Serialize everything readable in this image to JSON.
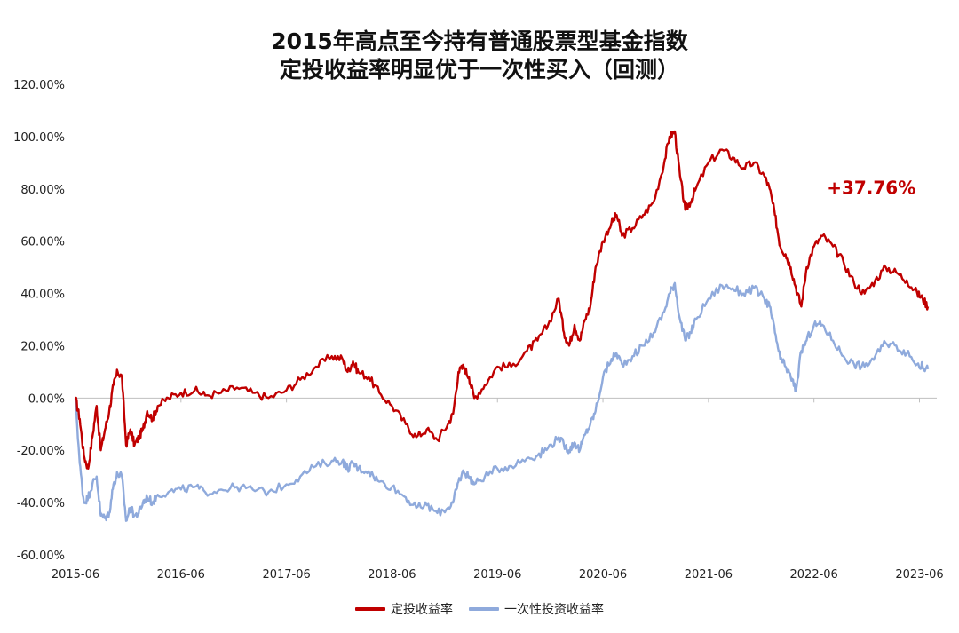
{
  "chart_data": {
    "type": "line",
    "title": "2015年高点至今持有普通股票型基金指数",
    "subtitle": "定投收益率明显优于一次性买入（回测）",
    "xlabel": "",
    "ylabel": "",
    "ylim": [
      -60,
      120
    ],
    "ytick_values": [
      -60,
      -40,
      -20,
      0,
      20,
      40,
      60,
      80,
      100,
      120
    ],
    "ytick_labels": [
      "-60.00%",
      "-40.00%",
      "-20.00%",
      "0.00%",
      "20.00%",
      "40.00%",
      "60.00%",
      "80.00%",
      "100.00%",
      "120.00%"
    ],
    "xrange": [
      2015.42,
      2023.5
    ],
    "xtick_values": [
      2015.42,
      2016.42,
      2017.42,
      2018.42,
      2019.42,
      2020.42,
      2021.42,
      2022.42,
      2023.42
    ],
    "xtick_labels": [
      "2015-06",
      "2016-06",
      "2017-06",
      "2018-06",
      "2019-06",
      "2020-06",
      "2021-06",
      "2022-06",
      "2023-06"
    ],
    "annotation": {
      "text": "+37.76%",
      "x": 2022.5,
      "y": 78,
      "color": "#c00000"
    },
    "series": [
      {
        "name": "定投收益率",
        "color": "#c00000",
        "x": [
          2015.42,
          2015.46,
          2015.5,
          2015.54,
          2015.58,
          2015.62,
          2015.66,
          2015.7,
          2015.74,
          2015.78,
          2015.82,
          2015.86,
          2015.9,
          2015.94,
          2015.98,
          2016.02,
          2016.06,
          2016.1,
          2016.15,
          2016.2,
          2016.3,
          2016.42,
          2016.55,
          2016.65,
          2016.8,
          2016.95,
          2017.1,
          2017.25,
          2017.42,
          2017.55,
          2017.7,
          2017.85,
          2017.95,
          2018.0,
          2018.05,
          2018.1,
          2018.2,
          2018.3,
          2018.42,
          2018.55,
          2018.65,
          2018.75,
          2018.85,
          2018.95,
          2019.0,
          2019.05,
          2019.1,
          2019.15,
          2019.2,
          2019.3,
          2019.42,
          2019.55,
          2019.7,
          2019.8,
          2019.9,
          2020.0,
          2020.05,
          2020.1,
          2020.15,
          2020.2,
          2020.25,
          2020.3,
          2020.35,
          2020.42,
          2020.5,
          2020.55,
          2020.6,
          2020.7,
          2020.8,
          2020.9,
          2021.0,
          2021.05,
          2021.1,
          2021.15,
          2021.2,
          2021.25,
          2021.3,
          2021.42,
          2021.55,
          2021.65,
          2021.75,
          2021.85,
          2021.95,
          2022.0,
          2022.05,
          2022.1,
          2022.15,
          2022.2,
          2022.25,
          2022.3,
          2022.35,
          2022.42,
          2022.5,
          2022.6,
          2022.7,
          2022.8,
          2022.9,
          2023.0,
          2023.1,
          2023.2,
          2023.3,
          2023.4,
          2023.45,
          2023.5
        ],
        "values": [
          0,
          -8,
          -22,
          -27,
          -15,
          -3,
          -20,
          -12,
          -5,
          5,
          10,
          8,
          -18,
          -12,
          -18,
          -15,
          -12,
          -5,
          -8,
          -3,
          0,
          2,
          3,
          1,
          2,
          4,
          2,
          0,
          3,
          7,
          12,
          16,
          15,
          10,
          14,
          10,
          8,
          2,
          -3,
          -10,
          -15,
          -12,
          -16,
          -10,
          -6,
          10,
          12,
          8,
          0,
          5,
          12,
          12,
          18,
          22,
          28,
          38,
          25,
          20,
          28,
          22,
          30,
          35,
          50,
          60,
          67,
          70,
          62,
          65,
          70,
          75,
          90,
          100,
          102,
          85,
          72,
          75,
          80,
          90,
          95,
          92,
          88,
          90,
          85,
          80,
          70,
          58,
          55,
          50,
          42,
          35,
          50,
          58,
          62,
          58,
          52,
          44,
          40,
          45,
          50,
          48,
          45,
          40,
          38,
          35
        ]
      },
      {
        "name": "一次性投资收益率",
        "color": "#8faadc",
        "x": [
          2015.42,
          2015.46,
          2015.5,
          2015.54,
          2015.58,
          2015.62,
          2015.66,
          2015.7,
          2015.74,
          2015.78,
          2015.82,
          2015.86,
          2015.9,
          2015.94,
          2015.98,
          2016.02,
          2016.06,
          2016.1,
          2016.15,
          2016.2,
          2016.3,
          2016.42,
          2016.55,
          2016.65,
          2016.8,
          2016.95,
          2017.1,
          2017.25,
          2017.42,
          2017.55,
          2017.7,
          2017.85,
          2017.95,
          2018.0,
          2018.05,
          2018.1,
          2018.2,
          2018.3,
          2018.42,
          2018.55,
          2018.65,
          2018.75,
          2018.85,
          2018.95,
          2019.0,
          2019.05,
          2019.1,
          2019.15,
          2019.2,
          2019.3,
          2019.42,
          2019.55,
          2019.7,
          2019.8,
          2019.9,
          2020.0,
          2020.05,
          2020.1,
          2020.15,
          2020.2,
          2020.25,
          2020.3,
          2020.35,
          2020.42,
          2020.5,
          2020.55,
          2020.6,
          2020.7,
          2020.8,
          2020.9,
          2021.0,
          2021.05,
          2021.1,
          2021.15,
          2021.2,
          2021.25,
          2021.3,
          2021.42,
          2021.55,
          2021.65,
          2021.75,
          2021.85,
          2021.95,
          2022.0,
          2022.05,
          2022.1,
          2022.15,
          2022.2,
          2022.25,
          2022.3,
          2022.35,
          2022.42,
          2022.5,
          2022.6,
          2022.7,
          2022.8,
          2022.9,
          2023.0,
          2023.1,
          2023.2,
          2023.3,
          2023.4,
          2023.45,
          2023.5
        ],
        "values": [
          0,
          -25,
          -40,
          -38,
          -33,
          -30,
          -45,
          -46,
          -44,
          -33,
          -29,
          -30,
          -47,
          -42,
          -45,
          -44,
          -40,
          -38,
          -40,
          -37,
          -36,
          -35,
          -34,
          -36,
          -35,
          -34,
          -35,
          -36,
          -33,
          -30,
          -26,
          -24,
          -24,
          -27,
          -25,
          -27,
          -28,
          -32,
          -34,
          -38,
          -42,
          -41,
          -44,
          -42,
          -40,
          -32,
          -28,
          -30,
          -33,
          -30,
          -27,
          -26,
          -23,
          -22,
          -19,
          -15,
          -18,
          -20,
          -17,
          -20,
          -14,
          -10,
          -5,
          8,
          15,
          17,
          13,
          16,
          20,
          25,
          33,
          40,
          44,
          30,
          22,
          25,
          30,
          38,
          43,
          42,
          40,
          42,
          38,
          35,
          25,
          15,
          12,
          8,
          3,
          18,
          22,
          28,
          28,
          22,
          16,
          13,
          12,
          16,
          21,
          20,
          17,
          13,
          12,
          11
        ]
      }
    ]
  }
}
